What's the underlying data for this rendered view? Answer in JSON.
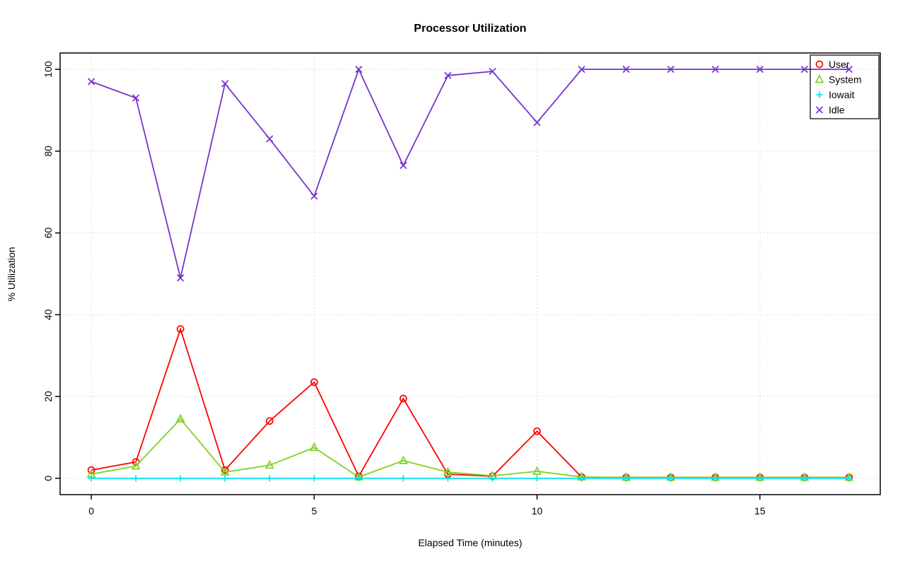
{
  "chart_data": {
    "type": "line",
    "title": "Processor Utilization",
    "xlabel": "Elapsed Time (minutes)",
    "ylabel": "% Utilization",
    "x": [
      0,
      1,
      2,
      3,
      4,
      5,
      6,
      7,
      8,
      9,
      10,
      11,
      12,
      13,
      14,
      15,
      16,
      17
    ],
    "xticks": [
      0,
      5,
      10,
      15
    ],
    "yticks": [
      0,
      20,
      40,
      60,
      80,
      100
    ],
    "xlim": [
      -0.7,
      17.7
    ],
    "ylim": [
      -4,
      104
    ],
    "grid": true,
    "grid_color": "#d3d3d3",
    "axis_color": "#000000",
    "text_color": "#000000",
    "background_color": "#ffffff",
    "legend_position": "top-right",
    "series": [
      {
        "name": "User",
        "color": "#ff0000",
        "marker": "circle",
        "values": [
          2,
          4,
          36.5,
          2,
          14,
          23.5,
          0.5,
          19.5,
          1,
          0.5,
          11.5,
          0.3,
          0.2,
          0.2,
          0.2,
          0.2,
          0.2,
          0.2
        ]
      },
      {
        "name": "System",
        "color": "#7ed321",
        "marker": "triangle",
        "values": [
          1,
          3,
          14.5,
          1.5,
          3.2,
          7.5,
          0.3,
          4.3,
          1.5,
          0.6,
          1.7,
          0.3,
          0.2,
          0.2,
          0.2,
          0.2,
          0.2,
          0.2
        ]
      },
      {
        "name": "Iowait",
        "color": "#00e5ee",
        "marker": "plus",
        "values": [
          0,
          0,
          0,
          0,
          0,
          0,
          0,
          0,
          0,
          0,
          0,
          0,
          0,
          0,
          0,
          0,
          0,
          0
        ]
      },
      {
        "name": "Idle",
        "color": "#7733cc",
        "marker": "x",
        "values": [
          97,
          93,
          49,
          96.5,
          83,
          69,
          100,
          76.5,
          98.5,
          99.5,
          87,
          100,
          100,
          100,
          100,
          100,
          100,
          100
        ]
      }
    ]
  }
}
